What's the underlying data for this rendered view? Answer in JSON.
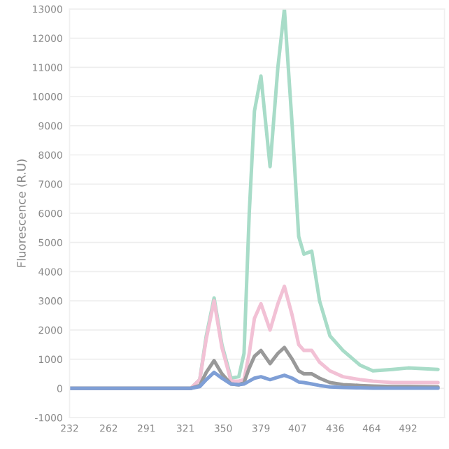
{
  "chart_data": {
    "type": "line",
    "ylabel": "Fluorescence (R.U)",
    "x": [
      232,
      300,
      325,
      332,
      337,
      343,
      349,
      356,
      362,
      366,
      370,
      374,
      379,
      386,
      392,
      397,
      403,
      408,
      412,
      418,
      424,
      432,
      442,
      455,
      465,
      480,
      492,
      515
    ],
    "series": [
      {
        "color": "#a8dcc8",
        "values": [
          0,
          0,
          0,
          300,
          1800,
          3100,
          1500,
          350,
          400,
          1200,
          6000,
          9500,
          10700,
          7600,
          11000,
          13000,
          9000,
          5200,
          4600,
          4700,
          3000,
          1800,
          1300,
          800,
          600,
          650,
          700,
          650
        ]
      },
      {
        "color": "#f2c1d5",
        "values": [
          0,
          0,
          0,
          300,
          1700,
          3000,
          1400,
          250,
          250,
          300,
          1200,
          2400,
          2900,
          2000,
          2900,
          3500,
          2500,
          1500,
          1300,
          1300,
          900,
          600,
          400,
          300,
          250,
          200,
          200,
          200
        ]
      },
      {
        "color": "#999999",
        "values": [
          0,
          0,
          0,
          100,
          550,
          950,
          500,
          150,
          120,
          200,
          700,
          1100,
          1300,
          850,
          1200,
          1400,
          1000,
          600,
          500,
          500,
          350,
          200,
          130,
          100,
          80,
          60,
          60,
          50
        ]
      },
      {
        "color": "#7f9fd6",
        "values": [
          0,
          0,
          0,
          60,
          300,
          550,
          350,
          150,
          130,
          150,
          250,
          350,
          400,
          300,
          380,
          450,
          350,
          220,
          200,
          150,
          100,
          50,
          30,
          20,
          10,
          10,
          10,
          10
        ]
      }
    ],
    "xlim": [
      232,
      520
    ],
    "xticks": [
      232,
      262,
      291,
      321,
      350,
      379,
      407,
      436,
      464,
      492
    ],
    "ylim": [
      -1000,
      13000
    ],
    "yticks": [
      -1000,
      0,
      1000,
      2000,
      3000,
      4000,
      5000,
      6000,
      7000,
      8000,
      9000,
      10000,
      11000,
      12000,
      13000
    ],
    "grid": "y"
  }
}
